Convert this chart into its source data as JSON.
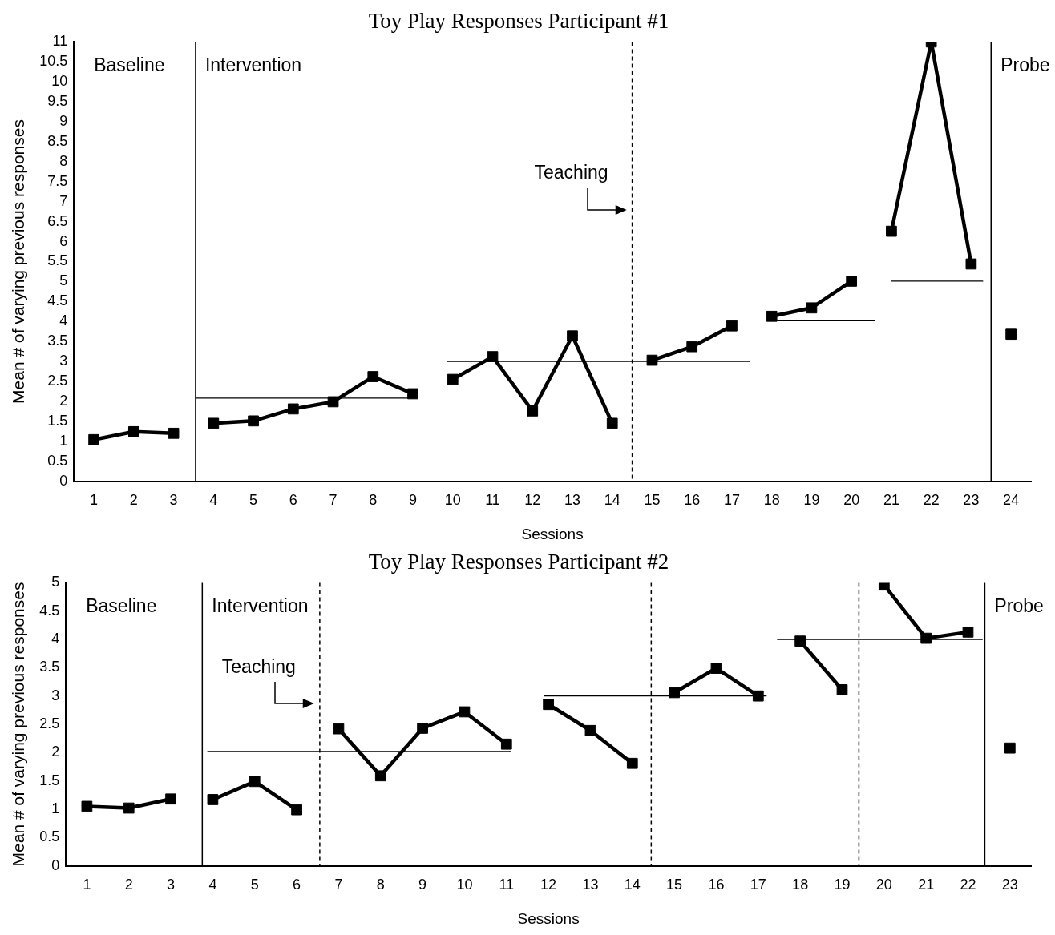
{
  "chart_data": [
    {
      "type": "line",
      "title": "Toy Play Responses Participant #1",
      "xlabel": "Sessions",
      "ylabel": "Mean # of varying previous responses",
      "marker": "square",
      "xlim": [
        0.5,
        24.5
      ],
      "xticks": [
        1,
        2,
        3,
        4,
        5,
        6,
        7,
        8,
        9,
        10,
        11,
        12,
        13,
        14,
        15,
        16,
        17,
        18,
        19,
        20,
        21,
        22,
        23,
        24
      ],
      "ylim": [
        0,
        11
      ],
      "yticks": [
        0,
        0.5,
        1,
        1.5,
        2,
        2.5,
        3,
        3.5,
        4,
        4.5,
        5,
        5.5,
        6,
        6.5,
        7,
        7.5,
        8,
        8.5,
        9,
        9.5,
        10,
        10.5,
        11
      ],
      "series": [
        {
          "color": "#000000",
          "x": [
            1,
            2,
            3
          ],
          "values": [
            1.04,
            1.24,
            1.2
          ]
        },
        {
          "color": "#000000",
          "x": [
            4,
            5,
            6,
            7,
            8,
            9
          ],
          "values": [
            1.45,
            1.51,
            1.81,
            1.99,
            2.62,
            2.19
          ]
        },
        {
          "color": "#000000",
          "x": [
            10,
            11,
            12,
            13,
            14
          ],
          "values": [
            2.55,
            3.12,
            1.76,
            3.64,
            1.45
          ]
        },
        {
          "color": "#000000",
          "x": [
            15,
            16,
            17
          ],
          "values": [
            3.03,
            3.37,
            3.89
          ]
        },
        {
          "color": "#000000",
          "x": [
            18,
            19,
            20
          ],
          "values": [
            4.13,
            4.34,
            5.01
          ]
        },
        {
          "color": "#000000",
          "x": [
            21,
            22,
            23
          ],
          "values": [
            6.26,
            11,
            5.44
          ]
        },
        {
          "color": "#000000",
          "x": [
            24
          ],
          "values": [
            3.68
          ]
        },
        {
          "type": "line",
          "marker": "none",
          "color": "#000000",
          "x": [
            3.55,
            8.9
          ],
          "values": [
            2.08,
            2.08
          ]
        },
        {
          "type": "line",
          "marker": "none",
          "color": "#000000",
          "x": [
            9.85,
            17.45
          ],
          "values": [
            3.0,
            3.0
          ]
        },
        {
          "type": "line",
          "marker": "none",
          "color": "#000000",
          "x": [
            17.9,
            20.6
          ],
          "values": [
            4.02,
            4.02
          ]
        },
        {
          "type": "line",
          "marker": "none",
          "color": "#000000",
          "x": [
            21,
            23.3
          ],
          "values": [
            5.01,
            5.01
          ]
        }
      ],
      "ref_lines": [
        {
          "axis": "x",
          "value": 3.55,
          "color": "#000000",
          "line_style": "solid"
        },
        {
          "axis": "x",
          "value": 14.5,
          "color": "#000000",
          "line_style": "dashed"
        },
        {
          "axis": "x",
          "value": 23.5,
          "color": "#000000",
          "line_style": "solid"
        }
      ],
      "annotations": [
        "Baseline",
        "Intervention",
        "Probe",
        "Teaching"
      ]
    },
    {
      "type": "line",
      "title": "Toy Play Responses Participant #2",
      "xlabel": "Sessions",
      "ylabel": "Mean # of varying previous responses",
      "marker": "square",
      "xlim": [
        0.5,
        23.5
      ],
      "xticks": [
        1,
        2,
        3,
        4,
        5,
        6,
        7,
        8,
        9,
        10,
        11,
        12,
        13,
        14,
        15,
        16,
        17,
        18,
        19,
        20,
        21,
        22,
        23
      ],
      "ylim": [
        0,
        5
      ],
      "yticks": [
        0,
        0.5,
        1,
        1.5,
        2,
        2.5,
        3,
        3.5,
        4,
        4.5,
        5
      ],
      "series": [
        {
          "color": "#000000",
          "x": [
            1,
            2,
            3
          ],
          "values": [
            1.05,
            1.02,
            1.18
          ]
        },
        {
          "color": "#000000",
          "x": [
            4,
            5,
            6
          ],
          "values": [
            1.17,
            1.49,
            0.99
          ]
        },
        {
          "color": "#000000",
          "x": [
            7,
            8,
            9,
            10,
            11
          ],
          "values": [
            2.42,
            1.59,
            2.43,
            2.72,
            2.15
          ]
        },
        {
          "color": "#000000",
          "x": [
            12,
            13,
            14
          ],
          "values": [
            2.85,
            2.39,
            1.81
          ]
        },
        {
          "color": "#000000",
          "x": [
            15,
            16,
            17
          ],
          "values": [
            3.06,
            3.49,
            3.0
          ]
        },
        {
          "color": "#000000",
          "x": [
            18,
            19
          ],
          "values": [
            3.97,
            3.11
          ]
        },
        {
          "color": "#000000",
          "x": [
            20,
            21,
            22
          ],
          "values": [
            4.96,
            4.02,
            4.13
          ]
        },
        {
          "color": "#000000",
          "x": [
            23
          ],
          "values": [
            2.08
          ]
        },
        {
          "type": "line",
          "marker": "none",
          "color": "#000000",
          "x": [
            3.87,
            11.1
          ],
          "values": [
            2.02,
            2.02
          ]
        },
        {
          "type": "line",
          "marker": "none",
          "color": "#000000",
          "x": [
            11.9,
            17.2
          ],
          "values": [
            3.0,
            3.0
          ]
        },
        {
          "type": "line",
          "marker": "none",
          "color": "#000000",
          "x": [
            17.45,
            22.35
          ],
          "values": [
            4.0,
            4.0
          ]
        }
      ],
      "ref_lines": [
        {
          "axis": "x",
          "value": 3.75,
          "color": "#000000",
          "line_style": "solid"
        },
        {
          "axis": "x",
          "value": 6.55,
          "color": "#000000",
          "line_style": "dashed"
        },
        {
          "axis": "x",
          "value": 14.45,
          "color": "#000000",
          "line_style": "dashed"
        },
        {
          "axis": "x",
          "value": 19.4,
          "color": "#000000",
          "line_style": "dashed"
        },
        {
          "axis": "x",
          "value": 22.4,
          "color": "#000000",
          "line_style": "solid"
        }
      ],
      "annotations": [
        "Baseline",
        "Intervention",
        "Probe",
        "Teaching"
      ]
    }
  ]
}
